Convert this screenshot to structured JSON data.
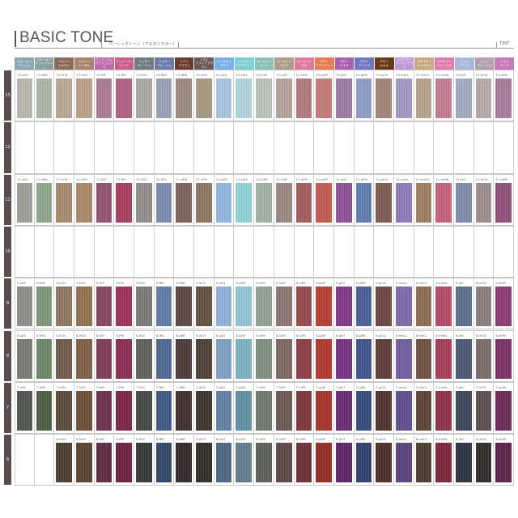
{
  "title": "BASIC TONE",
  "subtitle": "ベーシックトーン（アルカリカラー）",
  "tint_label": "TINT",
  "columns": [
    {
      "code": "sAS",
      "name": "スモーキー\nアッシュ",
      "color": "#8aa9b5"
    },
    {
      "code": "sMA",
      "name": "スモーキー\nマットアッシュ",
      "color": "#8aa0a0"
    },
    {
      "code": "hCN",
      "name": "ヘルシー\nシナモン",
      "color": "#8a6a58"
    },
    {
      "code": "hHZ",
      "name": "ヘルシー\nヘーゼル",
      "color": "#a88470"
    },
    {
      "code": "fAP",
      "name": "フェミニティ\nアッシュピンク",
      "color": "#c46aac"
    },
    {
      "code": "fPK",
      "name": "フェミニティ\nピンク",
      "color": "#cc5a8a"
    },
    {
      "code": "fGG",
      "name": "フェザー\nグレージュ",
      "color": "#6e7a7e"
    },
    {
      "code": "fBG",
      "name": "フェザー\nブルージュ",
      "color": "#6a7aa8"
    },
    {
      "code": "dBR",
      "name": "レディ\nブラウン",
      "color": "#6a3a2a"
    },
    {
      "code": "dCH",
      "name": "レディ\nソフィアブラウン",
      "color": "#6a5858"
    },
    {
      "code": "sAQ",
      "name": "シースルー\nアクア",
      "color": "#78b0e8"
    },
    {
      "code": "sAM",
      "name": "シースルー\nアクアミント",
      "color": "#7ad0d0"
    },
    {
      "code": "luMI",
      "name": "ルーセント\nミント",
      "color": "#8cc0b8"
    },
    {
      "code": "luSP",
      "name": "ルーセント\nセピア",
      "color": "#b09a8a"
    },
    {
      "code": "luRS",
      "name": "ルーセント\nロゼ",
      "color": "#e07a9a"
    },
    {
      "code": "glAP",
      "name": "グロー\nアプリコット",
      "color": "#e87a50"
    },
    {
      "code": "glVI",
      "name": "グロー\nビオラ",
      "color": "#a860b0"
    },
    {
      "code": "glIRI",
      "name": "グロー\nアイリス",
      "color": "#7078c0"
    },
    {
      "code": "glCA",
      "name": "グロー\nカカオ",
      "color": "#6a3a18"
    },
    {
      "code": "meLL",
      "name": "メロウラー\nライラックラテ",
      "color": "#c098d8"
    },
    {
      "code": "meCL",
      "name": "メロウラー\nキャラメル",
      "color": "#c8a880"
    },
    {
      "code": "meBL",
      "name": "メロウラー\nベリーラテ",
      "color": "#e07aa8"
    },
    {
      "code": "jeIC",
      "name": "ジェル\nアイス",
      "color": "#a8b8d8"
    },
    {
      "code": "jeGG",
      "name": "ジェル\nグレージュ",
      "color": "#b0a0a8"
    },
    {
      "code": "jeMV",
      "name": "ジェル\nモーブ",
      "color": "#c878b8"
    }
  ],
  "levels": [
    {
      "level": "13",
      "swatches": [
        "#b8b6b0",
        "#a9b4a5",
        "#b7a690",
        "#b9a188",
        "#a97b92",
        "#b05f80",
        "#a8a7a4",
        "#95a0b5",
        "#9b8880",
        "#a69780",
        "#a9c4e0",
        "#aed3dc",
        "#b7c4b8",
        "#b4a29a",
        "#b0797d",
        "#c27a74",
        "#9a79a6",
        "#8c9bc4",
        "#a08277",
        "#a097c0",
        "#b6a08a",
        "#c07a92",
        "#9fa9bf",
        "#b2a8a8",
        "#a77a9a"
      ]
    },
    {
      "level": "12",
      "swatches": []
    },
    {
      "level": "11",
      "swatches": [
        "#9e9c98",
        "#8ea48c",
        "#a4896d",
        "#a88868",
        "#8f506e",
        "#a53b5e",
        "#8e8d8a",
        "#7a89ad",
        "#7a6058",
        "#8a7560",
        "#90b4e0",
        "#8ed0d6",
        "#a0b0a2",
        "#9a8680",
        "#a05a5c",
        "#c0584e",
        "#8a4f95",
        "#5d7bb0",
        "#7e5850",
        "#8a7ab8",
        "#9c7c60",
        "#c45f7a",
        "#7d8aa8",
        "#9c8c8c",
        "#8e4f78"
      ]
    },
    {
      "level": "10",
      "swatches": []
    },
    {
      "level": "9",
      "swatches": [
        "#8e8c89",
        "#7d9477",
        "#8c7560",
        "#92704f",
        "#84435d",
        "#9a2e55",
        "#787876",
        "#5f7aa3",
        "#5a4440",
        "#5f4f40",
        "#8db0d8",
        "#8fc3d2",
        "#8f9f91",
        "#8a7570",
        "#94484c",
        "#b53c30",
        "#7e3585",
        "#475e95",
        "#6a4540",
        "#7a68a8",
        "#8a6a4f",
        "#b24866",
        "#5a6b8a",
        "#8a7a7a",
        "#8a3870"
      ]
    },
    {
      "level": "8",
      "swatches": [
        "#7a7876",
        "#6c8466",
        "#6e5848",
        "#7e5e44",
        "#7c3a55",
        "#8a2a50",
        "#5e5e5c",
        "#4e6590",
        "#4a3836",
        "#4a3e34",
        "#7b9fc2",
        "#7aafc0",
        "#7d8d7e",
        "#7b6660",
        "#8a3c42",
        "#b0362c",
        "#74307f",
        "#3e528a",
        "#5c3a36",
        "#6e5c9c",
        "#6e5040",
        "#a43a58",
        "#4a5670",
        "#7a6a6a",
        "#7a3064"
      ]
    },
    {
      "level": "7",
      "swatches": [
        "#4f534f",
        "#4a5c42",
        "#5a4838",
        "#6a4c36",
        "#6a2e48",
        "#7a2244",
        "#444644",
        "#3e5680",
        "#3c2e2c",
        "#3a322a",
        "#5f7fa0",
        "#5e8fa0",
        "#6e786c",
        "#6a5650",
        "#7a3438",
        "#a43028",
        "#682870",
        "#34467a",
        "#4e302c",
        "#5e4c8c",
        "#5a4232",
        "#8c2e48",
        "#3a4458",
        "#5a4c4c",
        "#6a2856"
      ]
    },
    {
      "level": "6",
      "swatches": [
        null,
        null,
        "#4a3a2e",
        "#58402e",
        "#5a2840",
        "#6a1e3c",
        "#323634",
        "#2e4466",
        "#302426",
        "#2e2a24",
        "#4a6480",
        "#607a8c",
        "#5a5e58",
        "#5a4644",
        "#6a2e32",
        "#8e2a20",
        "#5a2266",
        "#2e3e6a",
        "#4a2c28",
        "#56427a",
        "#4a3a2e",
        "#7a2438",
        "#2a3040",
        "#2e2828",
        "#5a1e48"
      ]
    }
  ]
}
